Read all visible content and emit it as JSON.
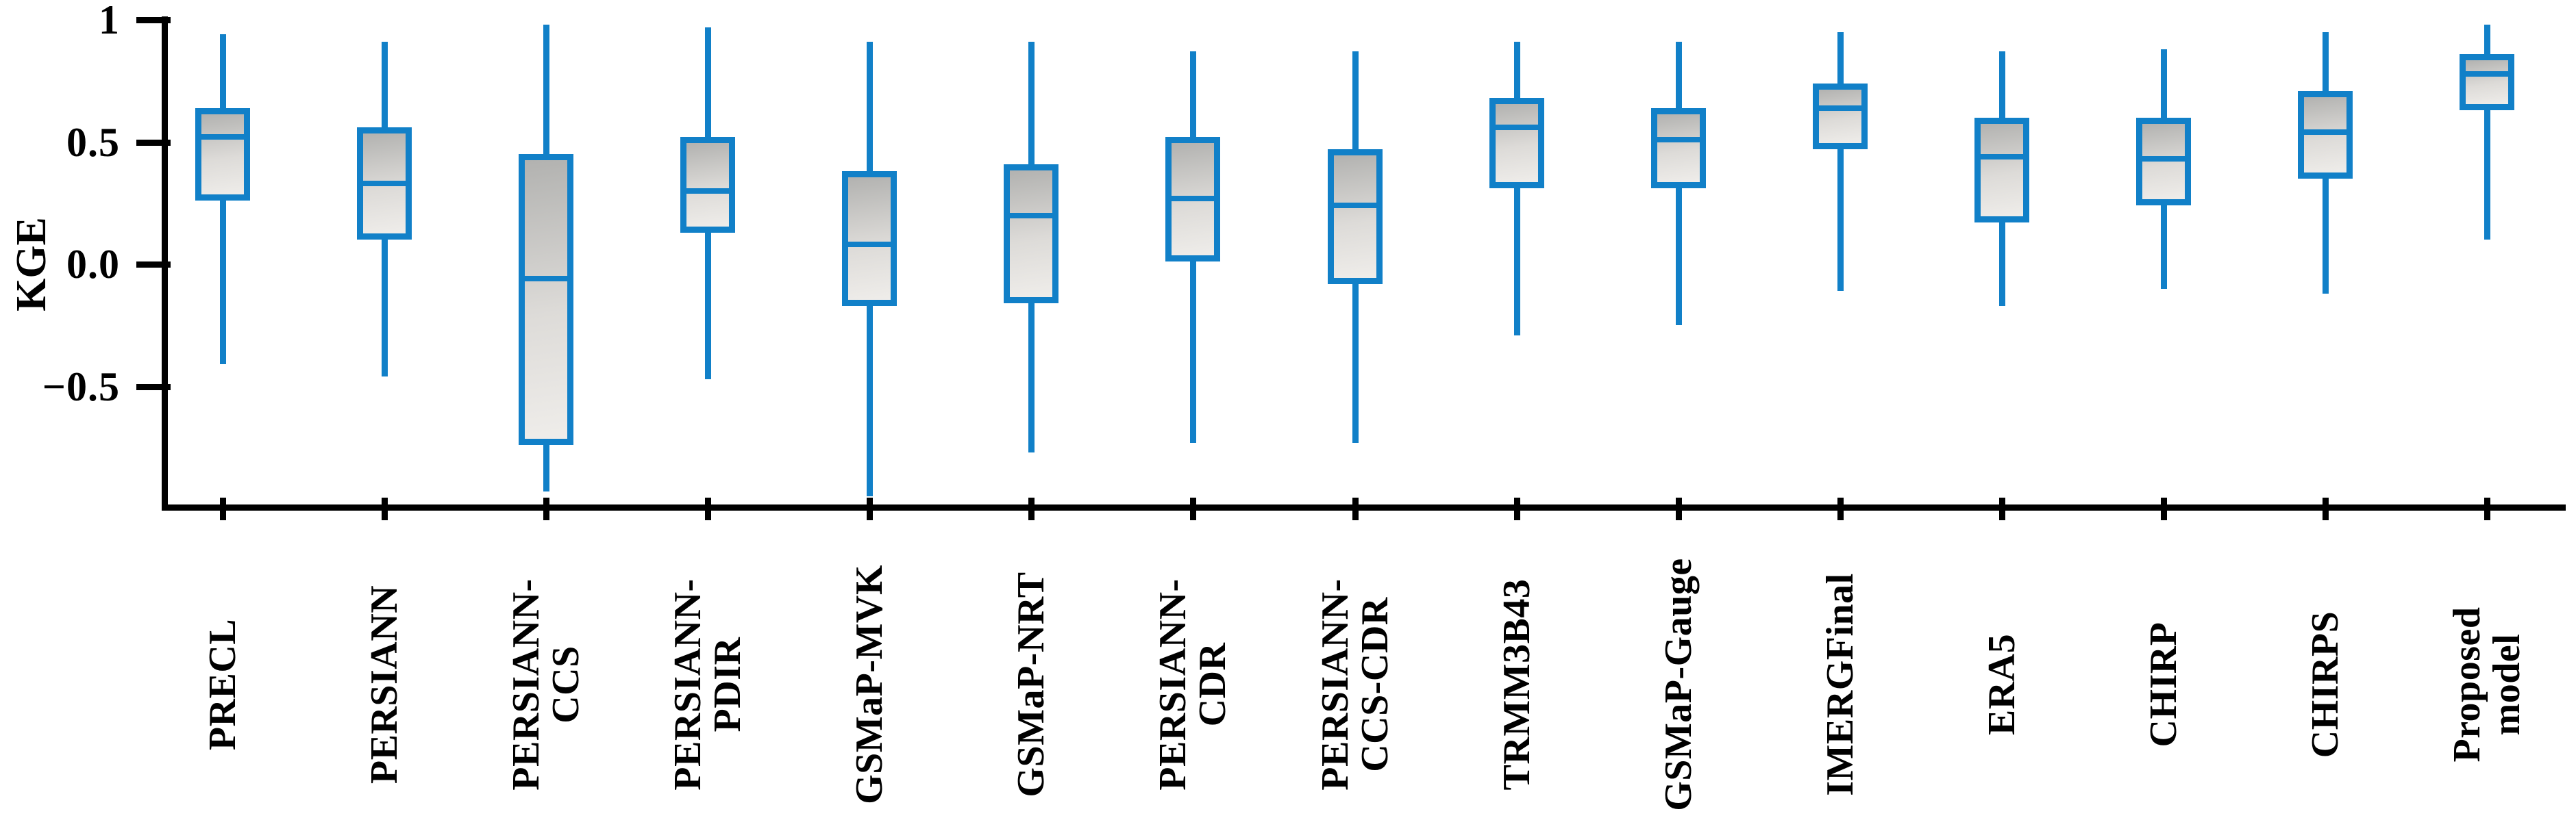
{
  "figure": {
    "background": "#ffffff"
  },
  "chart_data": {
    "type": "boxplot",
    "title": "",
    "xlabel": "",
    "ylabel": "KGE",
    "ylim": [
      -1.0,
      1.0
    ],
    "grid": false,
    "legend": "none",
    "yticks": [
      {
        "label": "1",
        "value": 1.0
      },
      {
        "label": "0.5",
        "value": 0.5
      },
      {
        "label": "0.0",
        "value": 0.0
      },
      {
        "label": "−0.5",
        "value": -0.5
      }
    ],
    "categories": [
      "PRECL",
      "PERSIANN",
      "PERSIANN-CCS",
      "PERSIANN-PDIR",
      "GSMaP-MVK",
      "GSMaP-NRT",
      "PERSIANN-CDR",
      "PERSIANN-CCS-CDR",
      "TRMM3B43",
      "GSMaP-Gauge",
      "IMERGFinal",
      "ERA5",
      "CHIRP",
      "CHIRPS",
      "Proposed model"
    ],
    "series": [
      {
        "name": "PRECL",
        "label_lines": [
          "PRECL"
        ],
        "whisker_high": 0.94,
        "q3": 0.64,
        "median": 0.52,
        "q1": 0.26,
        "whisker_low": -0.41
      },
      {
        "name": "PERSIANN",
        "label_lines": [
          "PERSIANN"
        ],
        "whisker_high": 0.91,
        "q3": 0.56,
        "median": 0.33,
        "q1": 0.1,
        "whisker_low": -0.46
      },
      {
        "name": "PERSIANN-CCS",
        "label_lines": [
          "PERSIANN-",
          "CCS"
        ],
        "whisker_high": 0.98,
        "q3": 0.45,
        "median": -0.06,
        "q1": -0.74,
        "whisker_low": -0.93
      },
      {
        "name": "PERSIANN-PDIR",
        "label_lines": [
          "PERSIANN-",
          "PDIR"
        ],
        "whisker_high": 0.97,
        "q3": 0.52,
        "median": 0.3,
        "q1": 0.13,
        "whisker_low": -0.47
      },
      {
        "name": "GSMaP-MVK",
        "label_lines": [
          "GSMaP-MVK"
        ],
        "whisker_high": 0.91,
        "q3": 0.38,
        "median": 0.08,
        "q1": -0.17,
        "whisker_low": -0.95
      },
      {
        "name": "GSMaP-NRT",
        "label_lines": [
          "GSMaP-NRT"
        ],
        "whisker_high": 0.91,
        "q3": 0.41,
        "median": 0.2,
        "q1": -0.16,
        "whisker_low": -0.77
      },
      {
        "name": "PERSIANN-CDR",
        "label_lines": [
          "PERSIANN-",
          "CDR"
        ],
        "whisker_high": 0.87,
        "q3": 0.52,
        "median": 0.27,
        "q1": 0.01,
        "whisker_low": -0.73
      },
      {
        "name": "PERSIANN-CCS-CDR",
        "label_lines": [
          "PERSIANN-",
          "CCS-CDR"
        ],
        "whisker_high": 0.87,
        "q3": 0.47,
        "median": 0.24,
        "q1": -0.08,
        "whisker_low": -0.73
      },
      {
        "name": "TRMM3B43",
        "label_lines": [
          "TRMM3B43"
        ],
        "whisker_high": 0.91,
        "q3": 0.68,
        "median": 0.56,
        "q1": 0.31,
        "whisker_low": -0.29
      },
      {
        "name": "GSMaP-Gauge",
        "label_lines": [
          "GSMaP-Gauge"
        ],
        "whisker_high": 0.91,
        "q3": 0.64,
        "median": 0.51,
        "q1": 0.31,
        "whisker_low": -0.25
      },
      {
        "name": "IMERGFinal",
        "label_lines": [
          "IMERGFinal"
        ],
        "whisker_high": 0.95,
        "q3": 0.74,
        "median": 0.64,
        "q1": 0.47,
        "whisker_low": -0.11
      },
      {
        "name": "ERA5",
        "label_lines": [
          "ERA5"
        ],
        "whisker_high": 0.87,
        "q3": 0.6,
        "median": 0.44,
        "q1": 0.17,
        "whisker_low": -0.17
      },
      {
        "name": "CHIRP",
        "label_lines": [
          "CHIRP"
        ],
        "whisker_high": 0.88,
        "q3": 0.6,
        "median": 0.43,
        "q1": 0.24,
        "whisker_low": -0.1
      },
      {
        "name": "CHIRPS",
        "label_lines": [
          "CHIRPS"
        ],
        "whisker_high": 0.95,
        "q3": 0.71,
        "median": 0.54,
        "q1": 0.35,
        "whisker_low": -0.12
      },
      {
        "name": "Proposed model",
        "label_lines": [
          "Proposed",
          "model"
        ],
        "whisker_high": 0.98,
        "q3": 0.86,
        "median": 0.78,
        "q1": 0.63,
        "whisker_low": 0.1
      }
    ],
    "colors": {
      "box_stroke": "#1180c8",
      "box_fill_top": "#b2b2b0",
      "box_fill_mid": "#dddbd8",
      "box_fill_bottom": "#efedea",
      "axis": "#000000",
      "text": "#000000"
    }
  }
}
